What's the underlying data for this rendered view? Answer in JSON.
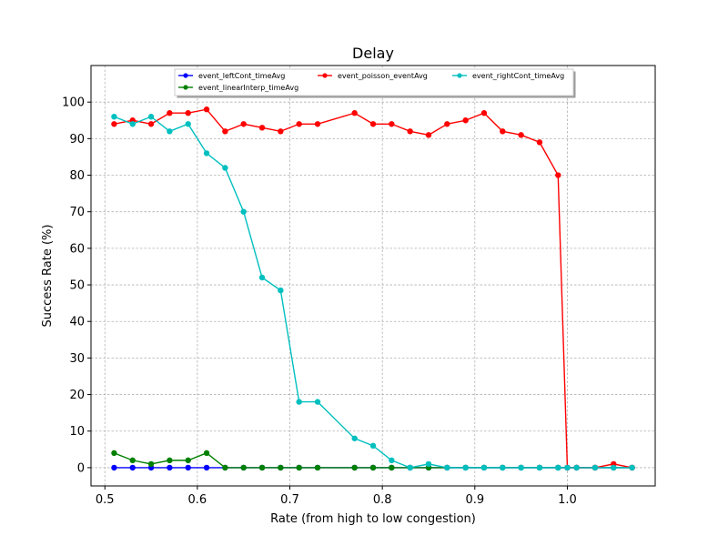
{
  "chart_data": {
    "type": "line",
    "title": "Delay",
    "xlabel": "Rate (from high to low congestion)",
    "ylabel": "Success Rate (%)",
    "xlim": [
      0.485,
      1.095
    ],
    "ylim": [
      -5,
      110
    ],
    "x_ticks": [
      0.5,
      0.6,
      0.7,
      0.8,
      0.9,
      1.0
    ],
    "x_tick_labels": [
      "0.5",
      "0.6",
      "0.7",
      "0.8",
      "0.9",
      "1.0"
    ],
    "y_ticks": [
      0,
      10,
      20,
      30,
      40,
      50,
      60,
      70,
      80,
      90,
      100
    ],
    "y_tick_labels": [
      "0",
      "10",
      "20",
      "30",
      "40",
      "50",
      "60",
      "70",
      "80",
      "90",
      "100"
    ],
    "grid": true,
    "legend_placement": "top-center",
    "x": [
      0.51,
      0.53,
      0.55,
      0.57,
      0.59,
      0.61,
      0.63,
      0.65,
      0.67,
      0.69,
      0.71,
      0.73,
      0.77,
      0.79,
      0.81,
      0.83,
      0.85,
      0.87,
      0.89,
      0.91,
      0.93,
      0.95,
      0.97,
      0.99,
      1.0,
      1.01,
      1.03,
      1.05,
      1.07
    ],
    "series": [
      {
        "name": "event_leftCont_timeAvg",
        "color": "#0000ff",
        "values": [
          0,
          0,
          0,
          0,
          0,
          0,
          0,
          0,
          0,
          0,
          0,
          0,
          0,
          0,
          0,
          0,
          0,
          0,
          0,
          0,
          0,
          0,
          0,
          0,
          0,
          0,
          0,
          0,
          0
        ]
      },
      {
        "name": "event_linearInterp_timeAvg",
        "color": "#008000",
        "values": [
          4,
          2,
          1,
          2,
          2,
          4,
          0,
          0,
          0,
          0,
          0,
          0,
          0,
          0,
          0,
          0,
          0,
          0,
          0,
          0,
          0,
          0,
          0,
          0,
          0,
          0,
          0,
          0,
          0
        ]
      },
      {
        "name": "event_poisson_eventAvg",
        "color": "#ff0000",
        "values": [
          94,
          95,
          94,
          97,
          97,
          98,
          92,
          94,
          93,
          92,
          94,
          94,
          97,
          94,
          94,
          92,
          91,
          94,
          95,
          97,
          92,
          91,
          89,
          80,
          0,
          0,
          0,
          1,
          0
        ]
      },
      {
        "name": "event_rightCont_timeAvg",
        "color": "#00bfbf",
        "values": [
          96,
          94,
          96,
          92,
          94,
          86,
          82,
          70,
          52,
          48.5,
          18,
          18,
          8,
          6,
          2,
          0,
          1,
          0,
          0,
          0,
          0,
          0,
          0,
          0,
          0,
          0,
          0,
          0,
          0
        ]
      }
    ]
  }
}
